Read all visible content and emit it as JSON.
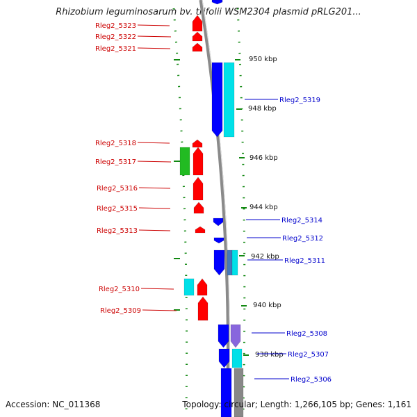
{
  "title": "Rhizobium leguminosarum bv. trifolii WSM2304 plasmid pRLG201...",
  "footer": {
    "accession": "Accession: NC_011368",
    "stats": "Topology: circular; Length: 1,266,105 bp; Genes: 1,161"
  },
  "colors": {
    "red": "#ff0000",
    "green": "#22bb22",
    "cyan": "#00e0e8",
    "blue": "#0000ff",
    "purple": "#8866dd",
    "gray": "#888888",
    "steel": "#4477bb",
    "label_red": "#cc0000",
    "label_blue": "#0000cc",
    "tick": "#118811"
  },
  "scale_ticks": [
    "950 kbp",
    "948 kbp",
    "946 kbp",
    "944 kbp",
    "942 kbp",
    "940 kbp",
    "938 kbp"
  ],
  "left_labels": [
    "Rleg2_5323",
    "Rleg2_5322",
    "Rleg2_5321",
    "Rleg2_5318",
    "Rleg2_5317",
    "Rleg2_5316",
    "Rleg2_5315",
    "Rleg2_5313",
    "Rleg2_5310",
    "Rleg2_5309"
  ],
  "right_labels": [
    "Rleg2_5319",
    "Rleg2_5314",
    "Rleg2_5312",
    "Rleg2_5311",
    "Rleg2_5308",
    "Rleg2_5307",
    "Rleg2_5306"
  ]
}
